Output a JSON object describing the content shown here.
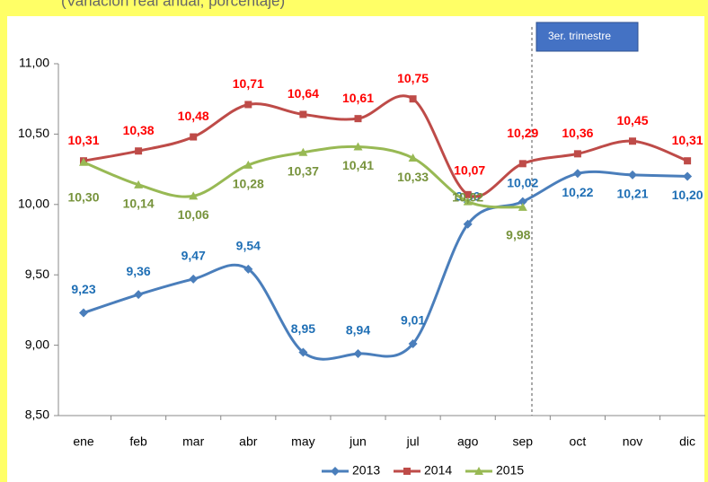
{
  "chart_data": {
    "type": "line",
    "subtitle": "(Variación real anual, porcentaje)",
    "annotation": "3er. trimestre",
    "categories": [
      "ene",
      "feb",
      "mar",
      "abr",
      "may",
      "jun",
      "jul",
      "ago",
      "sep",
      "oct",
      "nov",
      "dic"
    ],
    "series": [
      {
        "name": "2013",
        "color": "#4a7ebb",
        "label_color": "#1f6fb5",
        "marker": "diamond",
        "values": [
          9.23,
          9.36,
          9.47,
          9.54,
          8.95,
          8.94,
          9.01,
          9.86,
          10.02,
          10.22,
          10.21,
          10.2
        ],
        "value_labels": [
          "9,23",
          "9,36",
          "9,47",
          "9,54",
          "8,95",
          "8,94",
          "9,01",
          "9,86",
          "10,02",
          "10,22",
          "10,21",
          "10,20"
        ]
      },
      {
        "name": "2014",
        "color": "#be4b48",
        "label_color": "#ff0000",
        "marker": "square",
        "values": [
          10.31,
          10.38,
          10.48,
          10.71,
          10.64,
          10.61,
          10.75,
          10.07,
          10.29,
          10.36,
          10.45,
          10.31
        ],
        "value_labels": [
          "10,31",
          "10,38",
          "10,48",
          "10,71",
          "10,64",
          "10,61",
          "10,75",
          "10,07",
          "10,29",
          "10,36",
          "10,45",
          "10,31"
        ]
      },
      {
        "name": "2015",
        "color": "#98b954",
        "label_color": "#77933c",
        "marker": "triangle",
        "values": [
          10.3,
          10.14,
          10.06,
          10.28,
          10.37,
          10.41,
          10.33,
          10.02,
          9.98,
          null,
          null,
          null
        ],
        "value_labels": [
          "10,30",
          "10,14",
          "10,06",
          "10,28",
          "10,37",
          "10,41",
          "10,33",
          "10,02",
          "9,98",
          null,
          null,
          null
        ]
      }
    ],
    "ylim": [
      8.5,
      11.0
    ],
    "yticks": [
      {
        "value": 8.5,
        "label": "8,50"
      },
      {
        "value": 9.0,
        "label": "9,00"
      },
      {
        "value": 9.5,
        "label": "9,50"
      },
      {
        "value": 10.0,
        "label": "10,00"
      },
      {
        "value": 10.5,
        "label": "10,50"
      },
      {
        "value": 11.0,
        "label": "11,00"
      }
    ],
    "grid": false,
    "legend": "bottom"
  }
}
